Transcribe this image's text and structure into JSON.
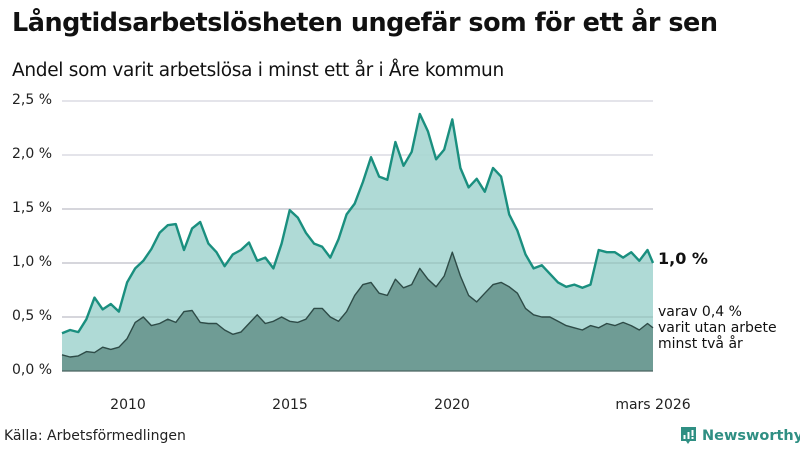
{
  "header": {
    "title": "Långtidsarbetslösheten ungefär som för ett år sen",
    "subtitle": "Andel som varit arbetslösa i minst ett år i Åre kommun"
  },
  "annotations": {
    "end_value_main": "1,0 %",
    "end_value_sub_line1": "varav 0,4 %",
    "end_value_sub_line2": "varit utan arbete",
    "end_value_sub_line3": "minst två år"
  },
  "footer": {
    "source": "Källa: Arbetsförmedlingen",
    "brand": "Newsworthy"
  },
  "colors": {
    "main_line": "#1a8f7f",
    "main_fill": "#a6d6d1",
    "sub_line": "#2e4b47",
    "sub_fill": "#6f9c95",
    "grid": "#e4e4ea",
    "brand": "#2f8f83"
  },
  "chart_data": {
    "type": "area",
    "title": "Långtidsarbetslösheten ungefär som för ett år sen",
    "subtitle": "Andel som varit arbetslösa i minst ett år i Åre kommun",
    "xlabel": "",
    "ylabel": "",
    "ylim": [
      0,
      2.5
    ],
    "yticks": [
      "0,0 %",
      "0,5 %",
      "1,0 %",
      "1,5 %",
      "2,0 %",
      "2,5 %"
    ],
    "xticks": [
      "2010",
      "2015",
      "2020",
      "mars 2026"
    ],
    "grid": true,
    "legend": "inline end labels",
    "x": [
      2008.0,
      2008.25,
      2008.5,
      2008.75,
      2009.0,
      2009.25,
      2009.5,
      2009.75,
      2010.0,
      2010.25,
      2010.5,
      2010.75,
      2011.0,
      2011.25,
      2011.5,
      2011.75,
      2012.0,
      2012.25,
      2012.5,
      2012.75,
      2013.0,
      2013.25,
      2013.5,
      2013.75,
      2014.0,
      2014.25,
      2014.5,
      2014.75,
      2015.0,
      2015.25,
      2015.5,
      2015.75,
      2016.0,
      2016.25,
      2016.5,
      2016.75,
      2017.0,
      2017.25,
      2017.5,
      2017.75,
      2018.0,
      2018.25,
      2018.5,
      2018.75,
      2019.0,
      2019.25,
      2019.5,
      2019.75,
      2020.0,
      2020.25,
      2020.5,
      2020.75,
      2021.0,
      2021.25,
      2021.5,
      2021.75,
      2022.0,
      2022.25,
      2022.5,
      2022.75,
      2023.0,
      2023.25,
      2023.5,
      2023.75,
      2024.0,
      2024.25,
      2024.5,
      2024.75,
      2025.0,
      2025.25,
      2025.5,
      2025.75,
      2026.0,
      2026.17
    ],
    "series": [
      {
        "name": "Minst ett år",
        "values": [
          0.35,
          0.38,
          0.36,
          0.48,
          0.68,
          0.57,
          0.62,
          0.55,
          0.82,
          0.95,
          1.02,
          1.13,
          1.28,
          1.35,
          1.36,
          1.12,
          1.32,
          1.38,
          1.18,
          1.1,
          0.97,
          1.08,
          1.12,
          1.19,
          1.02,
          1.05,
          0.95,
          1.18,
          1.49,
          1.42,
          1.28,
          1.18,
          1.15,
          1.05,
          1.22,
          1.45,
          1.55,
          1.75,
          1.98,
          1.8,
          1.77,
          2.12,
          1.9,
          2.03,
          2.38,
          2.22,
          1.96,
          2.05,
          2.33,
          1.88,
          1.7,
          1.78,
          1.66,
          1.88,
          1.8,
          1.45,
          1.3,
          1.08,
          0.95,
          0.98,
          0.9,
          0.82,
          0.78,
          0.8,
          0.77,
          0.8,
          1.12,
          1.1,
          1.1,
          1.05,
          1.1,
          1.02,
          1.12,
          1.0
        ]
      },
      {
        "name": "varav minst två år",
        "values": [
          0.15,
          0.13,
          0.14,
          0.18,
          0.17,
          0.22,
          0.2,
          0.22,
          0.3,
          0.45,
          0.5,
          0.42,
          0.44,
          0.48,
          0.45,
          0.55,
          0.56,
          0.45,
          0.44,
          0.44,
          0.38,
          0.34,
          0.36,
          0.44,
          0.52,
          0.44,
          0.46,
          0.5,
          0.46,
          0.45,
          0.48,
          0.58,
          0.58,
          0.5,
          0.46,
          0.55,
          0.7,
          0.8,
          0.82,
          0.72,
          0.7,
          0.85,
          0.77,
          0.8,
          0.95,
          0.85,
          0.78,
          0.88,
          1.1,
          0.88,
          0.7,
          0.64,
          0.72,
          0.8,
          0.82,
          0.78,
          0.72,
          0.58,
          0.52,
          0.5,
          0.5,
          0.46,
          0.42,
          0.4,
          0.38,
          0.42,
          0.4,
          0.44,
          0.42,
          0.45,
          0.42,
          0.38,
          0.44,
          0.4
        ]
      }
    ],
    "end_labels": {
      "main": "1,0 %",
      "sub": "varav 0,4 % varit utan arbete minst två år"
    }
  }
}
